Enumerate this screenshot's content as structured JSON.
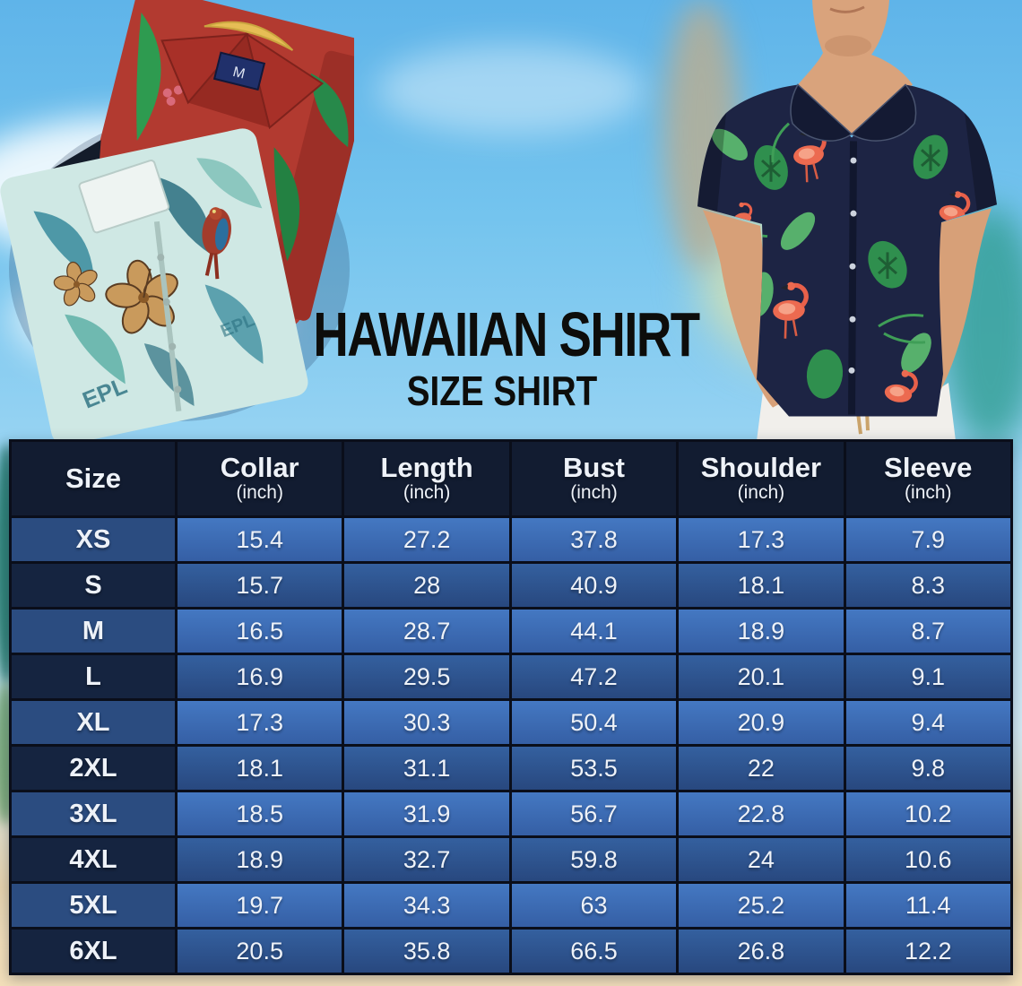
{
  "title": "HAWAIIAN SHIRT",
  "subtitle": "SIZE SHIRT",
  "chart_data": {
    "type": "table",
    "title": "Hawaiian Shirt Size Chart",
    "columns": [
      "Size",
      "Collar (inch)",
      "Length (inch)",
      "Bust (inch)",
      "Shoulder (inch)",
      "Sleeve (inch)"
    ],
    "rows": [
      [
        "XS",
        15.4,
        27.2,
        37.8,
        17.3,
        7.9
      ],
      [
        "S",
        15.7,
        28,
        40.9,
        18.1,
        8.3
      ],
      [
        "M",
        16.5,
        28.7,
        44.1,
        18.9,
        8.7
      ],
      [
        "L",
        16.9,
        29.5,
        47.2,
        20.1,
        9.1
      ],
      [
        "XL",
        17.3,
        30.3,
        50.4,
        20.9,
        9.4
      ],
      [
        "2XL",
        18.1,
        31.1,
        53.5,
        22,
        9.8
      ],
      [
        "3XL",
        18.5,
        31.9,
        56.7,
        22.8,
        10.2
      ],
      [
        "4XL",
        18.9,
        32.7,
        59.8,
        24,
        10.6
      ],
      [
        "5XL",
        19.7,
        34.3,
        63,
        25.2,
        11.4
      ],
      [
        "6XL",
        20.5,
        35.8,
        66.5,
        26.8,
        12.2
      ]
    ]
  },
  "size_chart": {
    "columns": [
      {
        "label": "Size",
        "unit": ""
      },
      {
        "label": "Collar",
        "unit": "(inch)"
      },
      {
        "label": "Length",
        "unit": "(inch)"
      },
      {
        "label": "Bust",
        "unit": "(inch)"
      },
      {
        "label": "Shoulder",
        "unit": "(inch)"
      },
      {
        "label": "Sleeve",
        "unit": "(inch)"
      }
    ],
    "rows": [
      {
        "size": "XS",
        "values": [
          "15.4",
          "27.2",
          "37.8",
          "17.3",
          "7.9"
        ]
      },
      {
        "size": "S",
        "values": [
          "15.7",
          "28",
          "40.9",
          "18.1",
          "8.3"
        ]
      },
      {
        "size": "M",
        "values": [
          "16.5",
          "28.7",
          "44.1",
          "18.9",
          "8.7"
        ]
      },
      {
        "size": "L",
        "values": [
          "16.9",
          "29.5",
          "47.2",
          "20.1",
          "9.1"
        ]
      },
      {
        "size": "XL",
        "values": [
          "17.3",
          "30.3",
          "50.4",
          "20.9",
          "9.4"
        ]
      },
      {
        "size": "2XL",
        "values": [
          "18.1",
          "31.1",
          "53.5",
          "22",
          "9.8"
        ]
      },
      {
        "size": "3XL",
        "values": [
          "18.5",
          "31.9",
          "56.7",
          "22.8",
          "10.2"
        ]
      },
      {
        "size": "4XL",
        "values": [
          "18.9",
          "32.7",
          "59.8",
          "24",
          "10.6"
        ]
      },
      {
        "size": "5XL",
        "values": [
          "19.7",
          "34.3",
          "63",
          "25.2",
          "11.4"
        ]
      },
      {
        "size": "6XL",
        "values": [
          "20.5",
          "35.8",
          "66.5",
          "26.8",
          "12.2"
        ]
      }
    ]
  },
  "photos": {
    "tag_letter": "M",
    "fabric_text": "EPL"
  },
  "colors": {
    "header_bg": "#121c31",
    "row_light_value": "#3b6eb9",
    "row_light_size": "#2b4c80",
    "row_dark_value": "#2e5695",
    "row_dark_size": "#152440",
    "table_border": "#0a0e1a",
    "title_color": "#0d0d0b",
    "sky": "#74c4ee",
    "sand": "#f0e0bd",
    "model_shirt_navy": "#1d2444",
    "flamingo": "#ec6a50",
    "leaf_green": "#2f8f4e",
    "red_shirt": "#b23a30",
    "teal_shirt": "#cfe8e4"
  }
}
